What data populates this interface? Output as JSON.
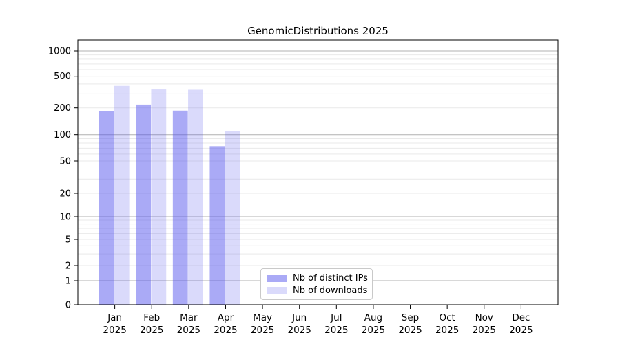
{
  "chart_data": {
    "type": "bar",
    "title": "GenomicDistributions 2025",
    "categories": [
      "Jan",
      "Feb",
      "Mar",
      "Apr",
      "May",
      "Jun",
      "Jul",
      "Aug",
      "Sep",
      "Oct",
      "Nov",
      "Dec"
    ],
    "x_tick_second_line": "2025",
    "series": [
      {
        "name": "Nb of distinct IPs",
        "base_color": "#5555ee",
        "opacity": 0.5,
        "approx_color": "#aaaaf6",
        "values": [
          185,
          220,
          186,
          74,
          0,
          0,
          0,
          0,
          0,
          0,
          0,
          0
        ]
      },
      {
        "name": "Nb of downloads",
        "base_color": "#5555ee",
        "opacity": 0.22,
        "approx_color": "#dadafb",
        "values": [
          378,
          340,
          337,
          110,
          0,
          0,
          0,
          0,
          0,
          0,
          0,
          0
        ]
      }
    ],
    "xlabel": "",
    "ylabel": "",
    "yticks": [
      0,
      1,
      2,
      5,
      10,
      20,
      50,
      100,
      200,
      500,
      1000
    ],
    "yscale": "log-with-zero",
    "ylim_top_approx": 1350,
    "grid": true,
    "legend_position": "bottom-center",
    "colors": {
      "major_grid": "#b0b0b0",
      "minor_grid": "#e9e9e9",
      "axis": "#000000",
      "text": "#000000",
      "background": "#ffffff"
    }
  }
}
